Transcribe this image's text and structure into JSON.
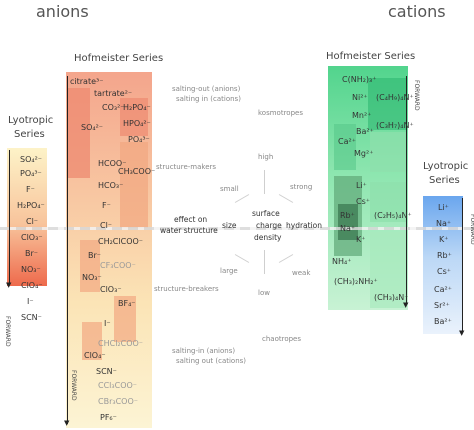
{
  "headers": {
    "anions": "anions",
    "cations": "cations"
  },
  "left": {
    "hofmeister_title": "Hofmeister Series",
    "lyotropic_title_1": "Lyotropic",
    "lyotropic_title_2": "Series",
    "forward": "FORWARD",
    "hofmeister_ions": [
      "citrate³⁻",
      "tartrate²⁻",
      "CO₃²⁻",
      "H₂PO₄⁻",
      "SO₄²⁻",
      "HPO₄²⁻",
      "PO₄³⁻",
      "HCOO⁻",
      "CH₃COO⁻",
      "HCO₃⁻",
      "F⁻",
      "Cl⁻",
      "CH₂ClCOO⁻",
      "Br⁻",
      "CF₃COO⁻",
      "NO₃⁻",
      "ClO₃⁻",
      "BF₄⁻",
      "I⁻",
      "CHCl₂COO⁻",
      "ClO₄⁻",
      "SCN⁻",
      "CCl₃COO⁻",
      "CBr₃COO⁻",
      "PF₆⁻"
    ],
    "lyotropic_ions": [
      "SO₄²⁻",
      "PO₄³⁻",
      "F⁻",
      "H₂PO₄⁻",
      "Cl⁻",
      "ClO₃⁻",
      "Br⁻",
      "NO₃⁻",
      "ClO₄⁻",
      "I⁻",
      "SCN⁻"
    ]
  },
  "right": {
    "hofmeister_title": "Hofmeister Series",
    "lyotropic_title_1": "Lyotropic",
    "lyotropic_title_2": "Series",
    "forward": "FORWARD",
    "hofmeister_ions": [
      "C(NH₂)₃⁺",
      "(C₄H₉)₄N⁺",
      "Ni²⁺",
      "Mn²⁺",
      "(C₃H₇)₄N⁺",
      "Ba²⁺",
      "Ca²⁺",
      "Mg²⁺",
      "Li⁺",
      "Cs⁺",
      "Rb⁺",
      "Na⁺",
      "(C₂H₅)₄N⁺",
      "K⁺",
      "NH₄⁺",
      "(CH₃)₂NH₂⁺",
      "(CH₃)₄N⁺"
    ],
    "lyotropic_ions": [
      "Li⁺",
      "Na⁺",
      "K⁺",
      "Rb⁺",
      "Cs⁺",
      "Ca²⁺",
      "Sr²⁺",
      "Ba²⁺"
    ]
  },
  "middle": {
    "salting_top": "salting-out (anions)",
    "salting_top_2": "salting in (cations)",
    "kosmotropes": "kosmotropes",
    "structure_makers": "structure-makers",
    "high": "high",
    "small": "small",
    "strong": "strong",
    "effect_1": "effect on",
    "effect_2": "water structure",
    "size": "size",
    "surface_1": "surface",
    "surface_2": "charge",
    "surface_3": "density",
    "hydration": "hydration",
    "large": "large",
    "weak": "weak",
    "structure_breakers": "structure-breakers",
    "low": "low",
    "salting_bottom": "salting-in (anions)",
    "salting_bottom_2": "salting out (cations)",
    "chaotropes": "chaotropes"
  },
  "colors": {
    "anion_dark": "#e8664a",
    "anion_light": "#fbefc4",
    "cation_dark": "#2fb872",
    "cation_light": "#d4f4dc",
    "lyo_blue": "#3a7fe0"
  }
}
